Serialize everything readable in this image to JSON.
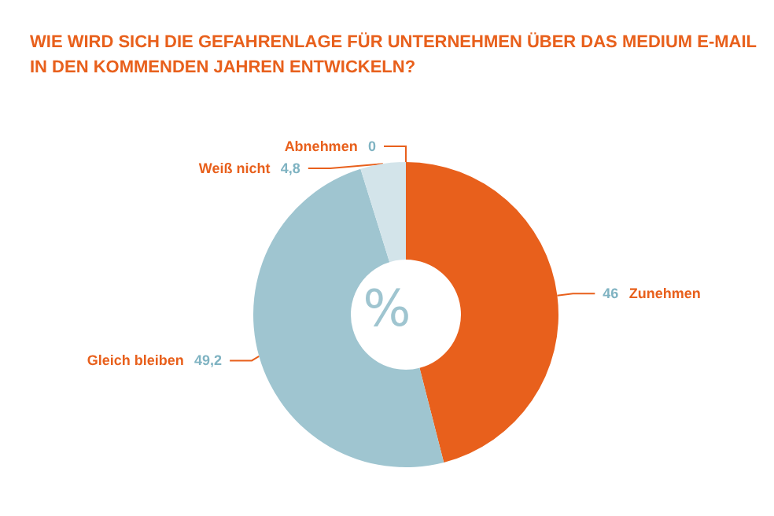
{
  "chart_data": {
    "type": "donut",
    "title": "WIE WIRD SICH DIE GEFAHRENLAGE FÜR UNTERNEHMEN ÜBER DAS MEDIUM E-MAIL\nIN DEN KOMMENDEN JAHREN ENTWICKELN?",
    "categories": [
      "Zunehmen",
      "Gleich bleiben",
      "Weiß nicht",
      "Abnehmen"
    ],
    "values": [
      46,
      49.2,
      4.8,
      0
    ],
    "value_labels": [
      "46",
      "49,2",
      "4,8",
      "0"
    ],
    "colors": [
      "#e8601c",
      "#9fc5d0",
      "#d3e4ea",
      "#b0b0b0"
    ],
    "annotations": [
      "%"
    ]
  }
}
